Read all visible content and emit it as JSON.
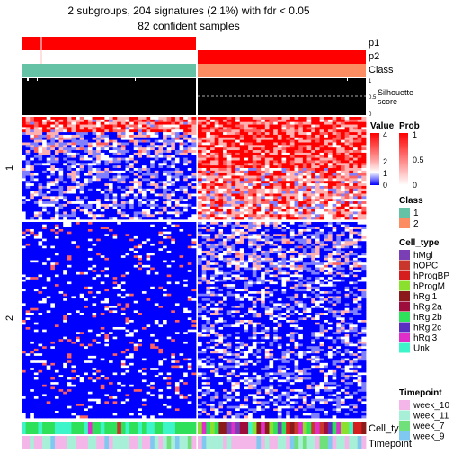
{
  "title": {
    "line1": "2 subgroups, 204 signatures (2.1%) with fdr < 0.05",
    "line2": "82 confident samples"
  },
  "annotation_labels": {
    "p1": "p1",
    "p2": "p2",
    "class": "Class",
    "silhouette_title": "Silhouette",
    "silhouette_sub": "score",
    "cell_type": "Cell_type",
    "timepoint": "Timepoint"
  },
  "silhouette_ticks": [
    "1",
    "0.5",
    "0"
  ],
  "row_splits": [
    "1",
    "2"
  ],
  "legends": {
    "value": {
      "title": "Value",
      "ticks": [
        "4",
        "2",
        "1",
        "0"
      ]
    },
    "prob": {
      "title": "Prob",
      "ticks": [
        "1",
        "0.5",
        "0"
      ]
    },
    "class": {
      "title": "Class",
      "items": [
        {
          "label": "1",
          "color": "#66C2A5"
        },
        {
          "label": "2",
          "color": "#FC8D62"
        }
      ]
    },
    "cell_type": {
      "title": "Cell_type",
      "items": [
        {
          "label": "hMgl",
          "color": "#7B3FB5"
        },
        {
          "label": "hOPC",
          "color": "#C9372C"
        },
        {
          "label": "hProgBP",
          "color": "#D61E1E"
        },
        {
          "label": "hProgM",
          "color": "#8BE02E"
        },
        {
          "label": "hRgl1",
          "color": "#8B1A1A"
        },
        {
          "label": "hRgl2a",
          "color": "#9E0E3C"
        },
        {
          "label": "hRgl2b",
          "color": "#2EE05A"
        },
        {
          "label": "hRgl2c",
          "color": "#5A2EC0"
        },
        {
          "label": "hRgl3",
          "color": "#E02EC8"
        },
        {
          "label": "Unk",
          "color": "#3DF5C8"
        }
      ]
    },
    "timepoint": {
      "title": "Timepoint",
      "items": [
        {
          "label": "week_10",
          "color": "#F4B6E8"
        },
        {
          "label": "week_11",
          "color": "#A8EFD8"
        },
        {
          "label": "week_7",
          "color": "#6FE07A"
        },
        {
          "label": "week_9",
          "color": "#7FC8F0"
        }
      ]
    }
  },
  "chart_data": {
    "type": "heatmap",
    "title": "2 subgroups, 204 signatures (2.1%) with fdr < 0.05",
    "subtitle": "82 confident samples",
    "column_groups": [
      {
        "class": "1"
      },
      {
        "class": "2"
      }
    ],
    "row_groups": [
      "1",
      "2"
    ],
    "value_scale": [
      0,
      1,
      2,
      4
    ],
    "prob_scale": [
      0,
      0.5,
      1
    ]
  },
  "colors": {
    "red": "#FF0000",
    "blue": "#0000FF",
    "white": "#FFFFFF",
    "black": "#000000",
    "dashed": "#aaaaaa"
  }
}
